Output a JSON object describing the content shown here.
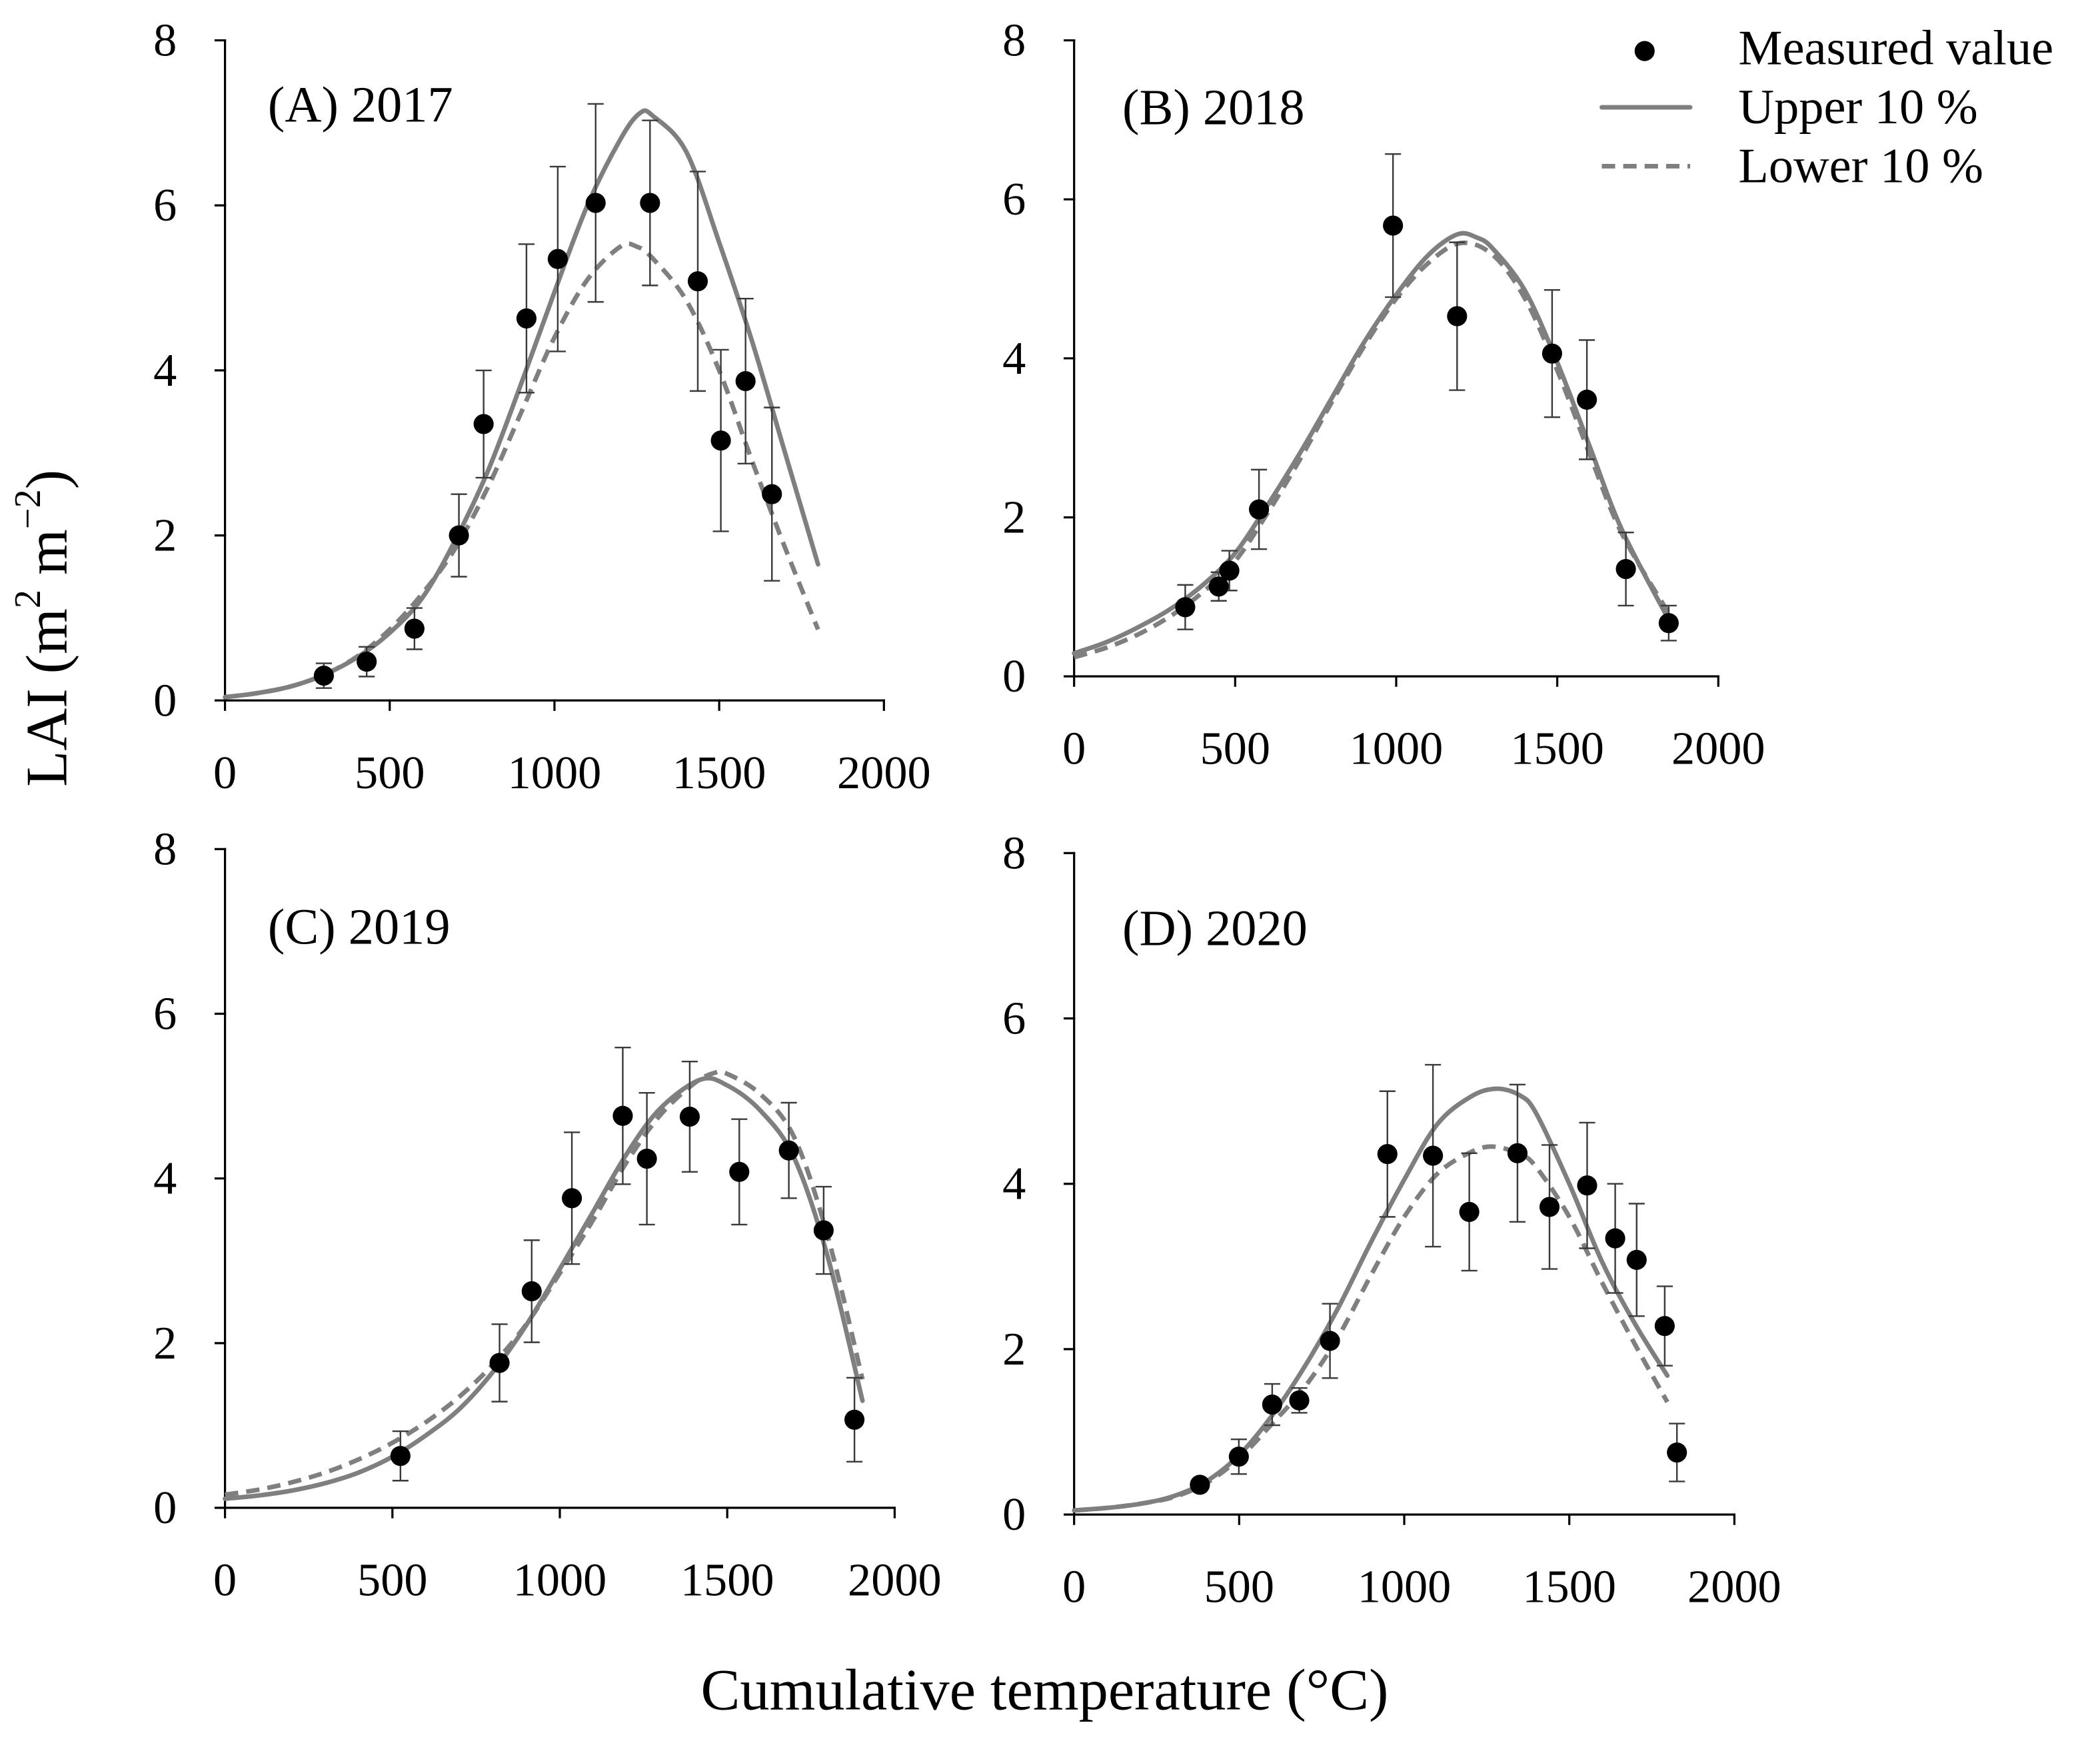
{
  "chart_data": {
    "type": "scatter",
    "xlabel": "Cumulative temperature (°C)",
    "ylabel": {
      "base": "LAI (m",
      "sup1": "2",
      "mid": " m",
      "sup2": "−2",
      "close": ")"
    },
    "legend": [
      "Measured value",
      "Upper 10 %",
      "Lower 10 %"
    ],
    "colors": {
      "measured": "#000000",
      "curve": "#7f7f7f",
      "error_bar": "#3a3a3a"
    },
    "panels": [
      {
        "title": "(A) 2017",
        "xlim": [
          0,
          2000
        ],
        "ylim": [
          0,
          8
        ],
        "x_ticks": [
          "0",
          "500",
          "1000",
          "1500",
          "2000"
        ],
        "y_ticks": [
          "0",
          "2",
          "4",
          "6",
          "8"
        ],
        "measured": {
          "x": [
            300,
            430,
            575,
            710,
            785,
            915,
            1010,
            1125,
            1290,
            1435,
            1505,
            1580,
            1660
          ],
          "y": [
            0.3,
            0.47,
            0.87,
            2.0,
            3.35,
            4.63,
            5.35,
            6.03,
            6.03,
            5.08,
            3.15,
            3.87,
            2.5
          ],
          "error": [
            0.15,
            0.18,
            0.25,
            0.5,
            0.65,
            0.9,
            1.12,
            1.2,
            1.0,
            1.33,
            1.1,
            1.0,
            1.05
          ]
        },
        "upper": {
          "x": [
            0,
            100,
            200,
            300,
            400,
            500,
            600,
            700,
            800,
            900,
            1000,
            1100,
            1200,
            1260,
            1300,
            1400,
            1500,
            1600,
            1700,
            1800
          ],
          "y": [
            0.04,
            0.09,
            0.17,
            0.31,
            0.52,
            0.82,
            1.25,
            1.95,
            2.8,
            3.85,
            4.95,
            6.0,
            6.8,
            7.12,
            7.08,
            6.65,
            5.55,
            4.35,
            3.0,
            1.65
          ]
        },
        "lower": {
          "x": [
            0,
            100,
            200,
            300,
            400,
            500,
            600,
            700,
            800,
            900,
            1000,
            1100,
            1200,
            1250,
            1300,
            1400,
            1500,
            1600,
            1700,
            1800
          ],
          "y": [
            0.04,
            0.09,
            0.17,
            0.31,
            0.53,
            0.86,
            1.3,
            1.85,
            2.6,
            3.5,
            4.4,
            5.1,
            5.5,
            5.5,
            5.35,
            4.85,
            4.0,
            2.9,
            1.85,
            0.86
          ]
        }
      },
      {
        "title": "(B) 2018",
        "xlim": [
          0,
          2000
        ],
        "ylim": [
          0,
          8
        ],
        "x_ticks": [
          "0",
          "500",
          "1000",
          "1500",
          "2000"
        ],
        "y_ticks": [
          "0",
          "2",
          "4",
          "6",
          "8"
        ],
        "measured": {
          "x": [
            345,
            449,
            482,
            574,
            990,
            1189,
            1484,
            1592,
            1713,
            1846
          ],
          "y": [
            0.87,
            1.13,
            1.33,
            2.1,
            5.67,
            4.53,
            4.06,
            3.48,
            1.35,
            0.67
          ],
          "error": [
            0.28,
            0.18,
            0.25,
            0.5,
            0.9,
            0.93,
            0.8,
            0.75,
            0.46,
            0.22
          ]
        },
        "upper": {
          "x": [
            0,
            100,
            200,
            300,
            400,
            500,
            600,
            700,
            800,
            900,
            1000,
            1100,
            1190,
            1250,
            1300,
            1400,
            1500,
            1600,
            1700,
            1845
          ],
          "y": [
            0.29,
            0.43,
            0.62,
            0.85,
            1.15,
            1.55,
            2.15,
            2.8,
            3.5,
            4.2,
            4.8,
            5.3,
            5.56,
            5.52,
            5.38,
            4.85,
            3.95,
            2.9,
            1.85,
            0.72
          ]
        },
        "lower": {
          "x": [
            0,
            100,
            200,
            300,
            400,
            500,
            600,
            700,
            800,
            900,
            1000,
            1100,
            1200,
            1300,
            1400,
            1500,
            1600,
            1700,
            1845
          ],
          "y": [
            0.24,
            0.36,
            0.53,
            0.76,
            1.06,
            1.45,
            2.05,
            2.72,
            3.45,
            4.15,
            4.75,
            5.2,
            5.45,
            5.3,
            4.75,
            3.85,
            2.8,
            1.8,
            0.8
          ]
        }
      },
      {
        "title": "(C) 2019",
        "xlim": [
          0,
          2000
        ],
        "ylim": [
          0,
          8
        ],
        "x_ticks": [
          "0",
          "500",
          "1000",
          "1500",
          "2000"
        ],
        "y_ticks": [
          "0",
          "2",
          "4",
          "6",
          "8"
        ],
        "measured": {
          "x": [
            524,
            820,
            916,
            1036,
            1188,
            1260,
            1388,
            1536,
            1684,
            1788,
            1880
          ],
          "y": [
            0.63,
            1.76,
            2.63,
            3.76,
            4.76,
            4.24,
            4.75,
            4.08,
            4.34,
            3.37,
            1.07
          ],
          "error": [
            0.3,
            0.47,
            0.62,
            0.8,
            0.83,
            0.8,
            0.67,
            0.64,
            0.58,
            0.53,
            0.51
          ]
        },
        "upper": {
          "x": [
            0,
            100,
            200,
            300,
            400,
            500,
            600,
            700,
            800,
            900,
            1000,
            1100,
            1200,
            1300,
            1420,
            1500,
            1600,
            1700,
            1800,
            1904
          ],
          "y": [
            0.11,
            0.15,
            0.21,
            0.3,
            0.43,
            0.62,
            0.88,
            1.2,
            1.65,
            2.22,
            2.9,
            3.6,
            4.3,
            4.85,
            5.2,
            5.13,
            4.82,
            4.25,
            3.05,
            1.3
          ]
        },
        "lower": {
          "x": [
            0,
            100,
            200,
            300,
            400,
            500,
            600,
            700,
            800,
            900,
            1000,
            1100,
            1200,
            1300,
            1400,
            1460,
            1500,
            1600,
            1700,
            1800,
            1904
          ],
          "y": [
            0.16,
            0.22,
            0.31,
            0.43,
            0.59,
            0.79,
            1.04,
            1.35,
            1.74,
            2.23,
            2.85,
            3.5,
            4.2,
            4.77,
            5.15,
            5.28,
            5.27,
            5.02,
            4.5,
            3.3,
            1.56
          ]
        }
      },
      {
        "title": "(D) 2020",
        "xlim": [
          0,
          2000
        ],
        "ylim": [
          0,
          8
        ],
        "x_ticks": [
          "0",
          "500",
          "1000",
          "1500",
          "2000"
        ],
        "y_ticks": [
          "0",
          "2",
          "4",
          "6",
          "8"
        ],
        "measured": {
          "x": [
            381,
            499,
            600,
            682,
            775,
            949,
            1087,
            1197,
            1343,
            1440,
            1554,
            1639,
            1704,
            1789,
            1826
          ],
          "y": [
            0.36,
            0.7,
            1.33,
            1.38,
            2.1,
            4.36,
            4.34,
            3.66,
            4.37,
            3.72,
            3.98,
            3.34,
            3.08,
            2.28,
            0.75
          ],
          "error": [
            0.05,
            0.21,
            0.25,
            0.15,
            0.45,
            0.76,
            1.1,
            0.71,
            0.83,
            0.75,
            0.76,
            0.66,
            0.68,
            0.48,
            0.35
          ]
        },
        "upper": {
          "x": [
            0,
            100,
            200,
            300,
            400,
            500,
            600,
            700,
            800,
            900,
            1000,
            1100,
            1200,
            1278,
            1350,
            1400,
            1500,
            1600,
            1700,
            1797
          ],
          "y": [
            0.05,
            0.08,
            0.13,
            0.22,
            0.4,
            0.72,
            1.2,
            1.8,
            2.5,
            3.3,
            4.05,
            4.72,
            5.05,
            5.15,
            5.07,
            4.85,
            4.0,
            3.05,
            2.3,
            1.68
          ]
        },
        "lower": {
          "x": [
            0,
            100,
            200,
            300,
            400,
            500,
            600,
            700,
            800,
            900,
            1000,
            1100,
            1200,
            1270,
            1350,
            1400,
            1500,
            1600,
            1700,
            1797
          ],
          "y": [
            0.05,
            0.08,
            0.13,
            0.21,
            0.38,
            0.68,
            1.1,
            1.55,
            2.15,
            2.9,
            3.6,
            4.12,
            4.38,
            4.45,
            4.36,
            4.2,
            3.6,
            2.8,
            2.05,
            1.36
          ]
        }
      }
    ]
  }
}
